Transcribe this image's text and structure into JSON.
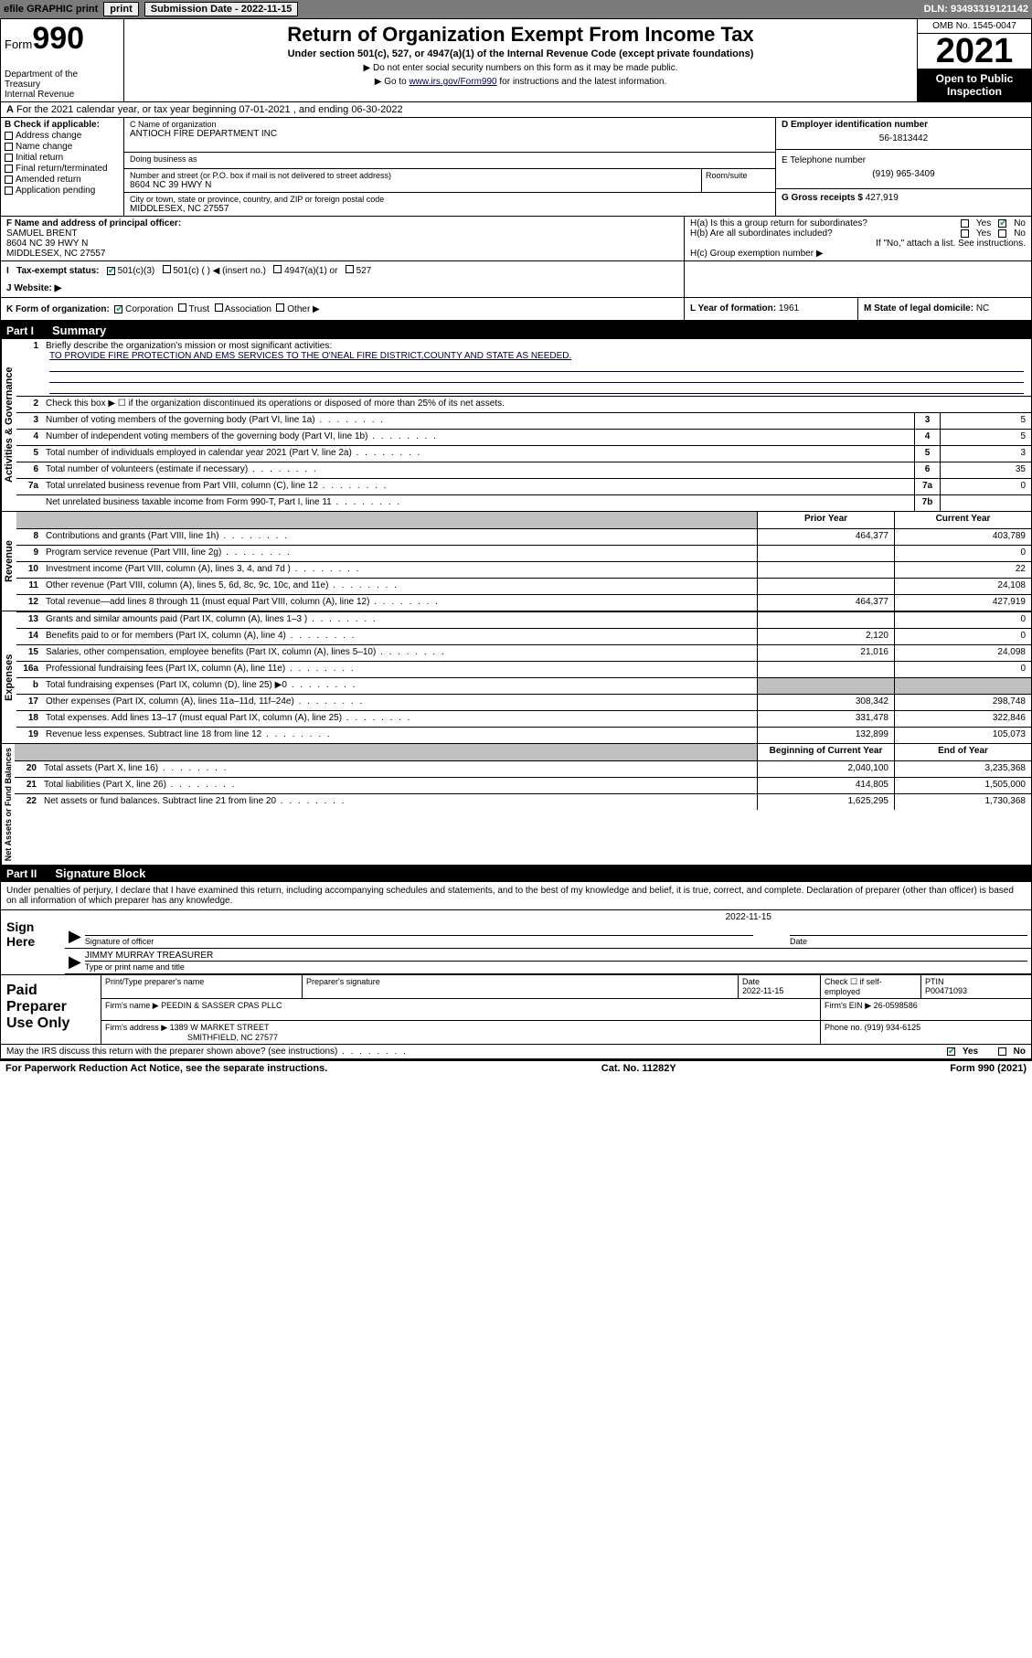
{
  "topbar": {
    "efile": "efile GRAPHIC print",
    "submission": "Submission Date - 2022-11-15",
    "dln": "DLN: 93493319121142"
  },
  "header": {
    "form_label": "Form",
    "form_num": "990",
    "dept": "Department of the Treasury\nInternal Revenue Service",
    "title": "Return of Organization Exempt From Income Tax",
    "subtitle": "Under section 501(c), 527, or 4947(a)(1) of the Internal Revenue Code (except private foundations)",
    "no_ssn": "▶ Do not enter social security numbers on this form as it may be made public.",
    "goto": "▶ Go to www.irs.gov/Form990 for instructions and the latest information.",
    "omb": "OMB No. 1545-0047",
    "year": "2021",
    "open": "Open to Public Inspection"
  },
  "row_a": {
    "prefix_a": "A",
    "text": " For the 2021 calendar year, or tax year beginning 07-01-2021    , and ending 06-30-2022"
  },
  "col_b": {
    "label": "B Check if applicable:",
    "items": [
      "Address change",
      "Name change",
      "Initial return",
      "Final return/terminated",
      "Amended return",
      "Application pending"
    ]
  },
  "col_c": {
    "name_label": "C Name of organization",
    "name": "ANTIOCH FIRE DEPARTMENT INC",
    "dba_label": "Doing business as",
    "dba": "",
    "addr_label": "Number and street (or P.O. box if mail is not delivered to street address)",
    "addr": "8604 NC 39 HWY N",
    "room_label": "Room/suite",
    "city_label": "City or town, state or province, country, and ZIP or foreign postal code",
    "city": "MIDDLESEX, NC  27557"
  },
  "col_d": {
    "label": "D Employer identification number",
    "val": "56-1813442"
  },
  "col_e": {
    "label": "E Telephone number",
    "val": "(919) 965-3409"
  },
  "col_g": {
    "label": "G Gross receipts $",
    "val": "427,919"
  },
  "row_f": {
    "label": "F Name and address of principal officer:",
    "name": "SAMUEL BRENT",
    "addr": "8604 NC 39 HWY N",
    "city": "MIDDLESEX, NC  27557"
  },
  "row_h": {
    "a_label": "H(a)  Is this a group return for subordinates?",
    "a_yes": "Yes",
    "a_no": "No",
    "b_label": "H(b)  Are all subordinates included?",
    "b_yes": "Yes",
    "b_no": "No",
    "b_note": "If \"No,\" attach a list. See instructions.",
    "c_label": "H(c)  Group exemption number ▶"
  },
  "row_i": {
    "label": "I   Tax-exempt status:",
    "opts": [
      "501(c)(3)",
      "501(c) (   ) ◀ (insert no.)",
      "4947(a)(1) or",
      "527"
    ]
  },
  "row_j": {
    "label": "J   Website: ▶"
  },
  "row_k": {
    "label": "K Form of organization:",
    "opts": [
      "Corporation",
      "Trust",
      "Association",
      "Other ▶"
    ],
    "l_label": "L Year of formation:",
    "l_val": "1961",
    "m_label": "M State of legal domicile:",
    "m_val": "NC"
  },
  "part1": {
    "hdr_part": "Part I",
    "hdr_name": "Summary",
    "tabs": {
      "ag": "Activities & Governance",
      "rev": "Revenue",
      "exp": "Expenses",
      "na": "Net Assets or Fund Balances"
    },
    "line1": "Briefly describe the organization's mission or most significant activities:",
    "mission": "TO PROVIDE FIRE PROTECTION AND EMS SERVICES TO THE O'NEAL FIRE DISTRICT,COUNTY AND STATE AS NEEDED.",
    "line2": "Check this box ▶ ☐  if the organization discontinued its operations or disposed of more than 25% of its net assets.",
    "rows_ag": [
      {
        "n": "3",
        "d": "Number of voting members of the governing body (Part VI, line 1a)",
        "box": "3",
        "v": "5"
      },
      {
        "n": "4",
        "d": "Number of independent voting members of the governing body (Part VI, line 1b)",
        "box": "4",
        "v": "5"
      },
      {
        "n": "5",
        "d": "Total number of individuals employed in calendar year 2021 (Part V, line 2a)",
        "box": "5",
        "v": "3"
      },
      {
        "n": "6",
        "d": "Total number of volunteers (estimate if necessary)",
        "box": "6",
        "v": "35"
      },
      {
        "n": "7a",
        "d": "Total unrelated business revenue from Part VIII, column (C), line 12",
        "box": "7a",
        "v": "0"
      },
      {
        "n": "",
        "d": "Net unrelated business taxable income from Form 990-T, Part I, line 11",
        "box": "7b",
        "v": ""
      }
    ],
    "hdr_prior": "Prior Year",
    "hdr_curr": "Current Year",
    "rows_rev": [
      {
        "n": "8",
        "d": "Contributions and grants (Part VIII, line 1h)",
        "p": "464,377",
        "c": "403,789"
      },
      {
        "n": "9",
        "d": "Program service revenue (Part VIII, line 2g)",
        "p": "",
        "c": "0"
      },
      {
        "n": "10",
        "d": "Investment income (Part VIII, column (A), lines 3, 4, and 7d )",
        "p": "",
        "c": "22"
      },
      {
        "n": "11",
        "d": "Other revenue (Part VIII, column (A), lines 5, 6d, 8c, 9c, 10c, and 11e)",
        "p": "",
        "c": "24,108"
      },
      {
        "n": "12",
        "d": "Total revenue—add lines 8 through 11 (must equal Part VIII, column (A), line 12)",
        "p": "464,377",
        "c": "427,919"
      }
    ],
    "rows_exp": [
      {
        "n": "13",
        "d": "Grants and similar amounts paid (Part IX, column (A), lines 1–3 )",
        "p": "",
        "c": "0"
      },
      {
        "n": "14",
        "d": "Benefits paid to or for members (Part IX, column (A), line 4)",
        "p": "2,120",
        "c": "0"
      },
      {
        "n": "15",
        "d": "Salaries, other compensation, employee benefits (Part IX, column (A), lines 5–10)",
        "p": "21,016",
        "c": "24,098"
      },
      {
        "n": "16a",
        "d": "Professional fundraising fees (Part IX, column (A), line 11e)",
        "p": "",
        "c": "0"
      },
      {
        "n": "b",
        "d": "Total fundraising expenses (Part IX, column (D), line 25) ▶0",
        "p": "__grey__",
        "c": "__grey__"
      },
      {
        "n": "17",
        "d": "Other expenses (Part IX, column (A), lines 11a–11d, 11f–24e)",
        "p": "308,342",
        "c": "298,748"
      },
      {
        "n": "18",
        "d": "Total expenses. Add lines 13–17 (must equal Part IX, column (A), line 25)",
        "p": "331,478",
        "c": "322,846"
      },
      {
        "n": "19",
        "d": "Revenue less expenses. Subtract line 18 from line 12",
        "p": "132,899",
        "c": "105,073"
      }
    ],
    "hdr_beg": "Beginning of Current Year",
    "hdr_end": "End of Year",
    "rows_na": [
      {
        "n": "20",
        "d": "Total assets (Part X, line 16)",
        "p": "2,040,100",
        "c": "3,235,368"
      },
      {
        "n": "21",
        "d": "Total liabilities (Part X, line 26)",
        "p": "414,805",
        "c": "1,505,000"
      },
      {
        "n": "22",
        "d": "Net assets or fund balances. Subtract line 21 from line 20",
        "p": "1,625,295",
        "c": "1,730,368"
      }
    ]
  },
  "part2": {
    "hdr_part": "Part II",
    "hdr_name": "Signature Block",
    "intro": "Under penalties of perjury, I declare that I have examined this return, including accompanying schedules and statements, and to the best of my knowledge and belief, it is true, correct, and complete. Declaration of preparer (other than officer) is based on all information of which preparer has any knowledge.",
    "sign_here": "Sign Here",
    "sig_officer": "Signature of officer",
    "sig_date": "Date",
    "sig_date_val": "2022-11-15",
    "sig_name": "JIMMY MURRAY TREASURER",
    "sig_name_label": "Type or print name and title",
    "paid": "Paid Preparer Use Only",
    "pp_name_label": "Print/Type preparer's name",
    "pp_sig_label": "Preparer's signature",
    "pp_date_label": "Date",
    "pp_date": "2022-11-15",
    "pp_check": "Check ☐ if self-employed",
    "pp_ptin_label": "PTIN",
    "pp_ptin": "P00471093",
    "firm_name_label": "Firm's name    ▶",
    "firm_name": "PEEDIN & SASSER CPAS PLLC",
    "firm_ein_label": "Firm's EIN ▶",
    "firm_ein": "26-0598586",
    "firm_addr_label": "Firm's address ▶",
    "firm_addr": "1389 W MARKET STREET",
    "firm_city": "SMITHFIELD, NC  27577",
    "phone_label": "Phone no.",
    "phone": "(919) 934-6125",
    "discuss": "May the IRS discuss this return with the preparer shown above? (see instructions)",
    "yes": "Yes",
    "no": "No"
  },
  "footer": {
    "paperwork": "For Paperwork Reduction Act Notice, see the separate instructions.",
    "cat": "Cat. No. 11282Y",
    "form": "Form 990 (2021)"
  }
}
